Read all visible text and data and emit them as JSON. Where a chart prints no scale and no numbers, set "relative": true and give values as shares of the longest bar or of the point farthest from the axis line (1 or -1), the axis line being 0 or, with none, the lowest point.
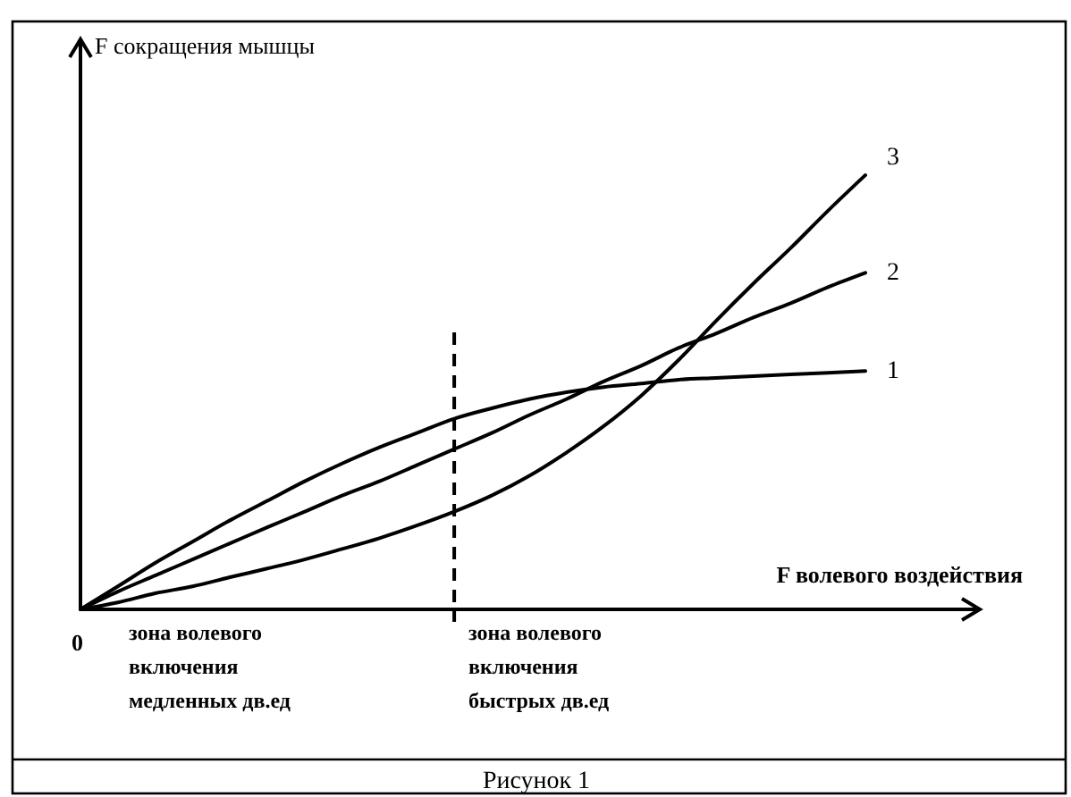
{
  "chart_data": {
    "type": "line",
    "relative": true,
    "xlabel": "F волевого воздействия",
    "categories": [
      null,
      null,
      null,
      null,
      null,
      null,
      null,
      null,
      null,
      null,
      null,
      null,
      null,
      null,
      null,
      null,
      null,
      null,
      null,
      null,
      null,
      null
    ],
    "series": [
      {
        "name": "1",
        "color": "#000000",
        "values": [
          0,
          0.053,
          0.107,
          0.156,
          0.205,
          0.25,
          0.295,
          0.336,
          0.373,
          0.406,
          0.439,
          0.463,
          0.484,
          0.5,
          0.512,
          0.52,
          0.529,
          0.533,
          0.537,
          0.541,
          0.545,
          0.549
        ]
      },
      {
        "name": "2",
        "color": "#000000",
        "values": [
          0,
          0.041,
          0.078,
          0.115,
          0.152,
          0.189,
          0.225,
          0.262,
          0.295,
          0.332,
          0.369,
          0.406,
          0.447,
          0.484,
          0.525,
          0.561,
          0.602,
          0.635,
          0.672,
          0.705,
          0.742,
          0.775
        ]
      },
      {
        "name": "3",
        "color": "#000000",
        "values": [
          0,
          0.016,
          0.037,
          0.053,
          0.074,
          0.094,
          0.115,
          0.139,
          0.164,
          0.193,
          0.225,
          0.262,
          0.307,
          0.361,
          0.422,
          0.492,
          0.574,
          0.664,
          0.75,
          0.832,
          0.918,
          1
        ]
      }
    ],
    "annotations": [
      "зона волевого включения медленных дв.ед",
      "зона волевого включения быстрых дв.ед",
      "0",
      "Рисунок 1",
      "F сокращения мышцы"
    ],
    "grid": false
  }
}
